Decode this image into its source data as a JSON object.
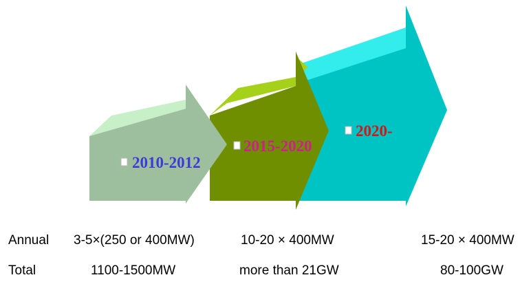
{
  "colors": {
    "stage1": "#9ebf9e",
    "stage1_top": "#c8f0c8",
    "stage2": "#6f8f00",
    "stage2_top": "#a6d11a",
    "stage3": "#00c4c4",
    "stage3_top": "#33ecec",
    "label1": "#3b3bd8",
    "label2": "#cc2288",
    "label3": "#d01818"
  },
  "stages": [
    {
      "label": "2010-2012",
      "icon": "square-bullet-icon"
    },
    {
      "label": "2015-2020",
      "icon": "square-bullet-icon"
    },
    {
      "label": "2020-",
      "icon": "square-bullet-icon"
    }
  ],
  "rows": [
    {
      "label": "Annual",
      "values": [
        "3-5×(250 or 400MW)",
        "10-20 × 400MW",
        "15-20 × 400MW"
      ]
    },
    {
      "label": "Total",
      "values": [
        "1100-1500MW",
        "more than 21GW",
        "80-100GW"
      ]
    }
  ]
}
